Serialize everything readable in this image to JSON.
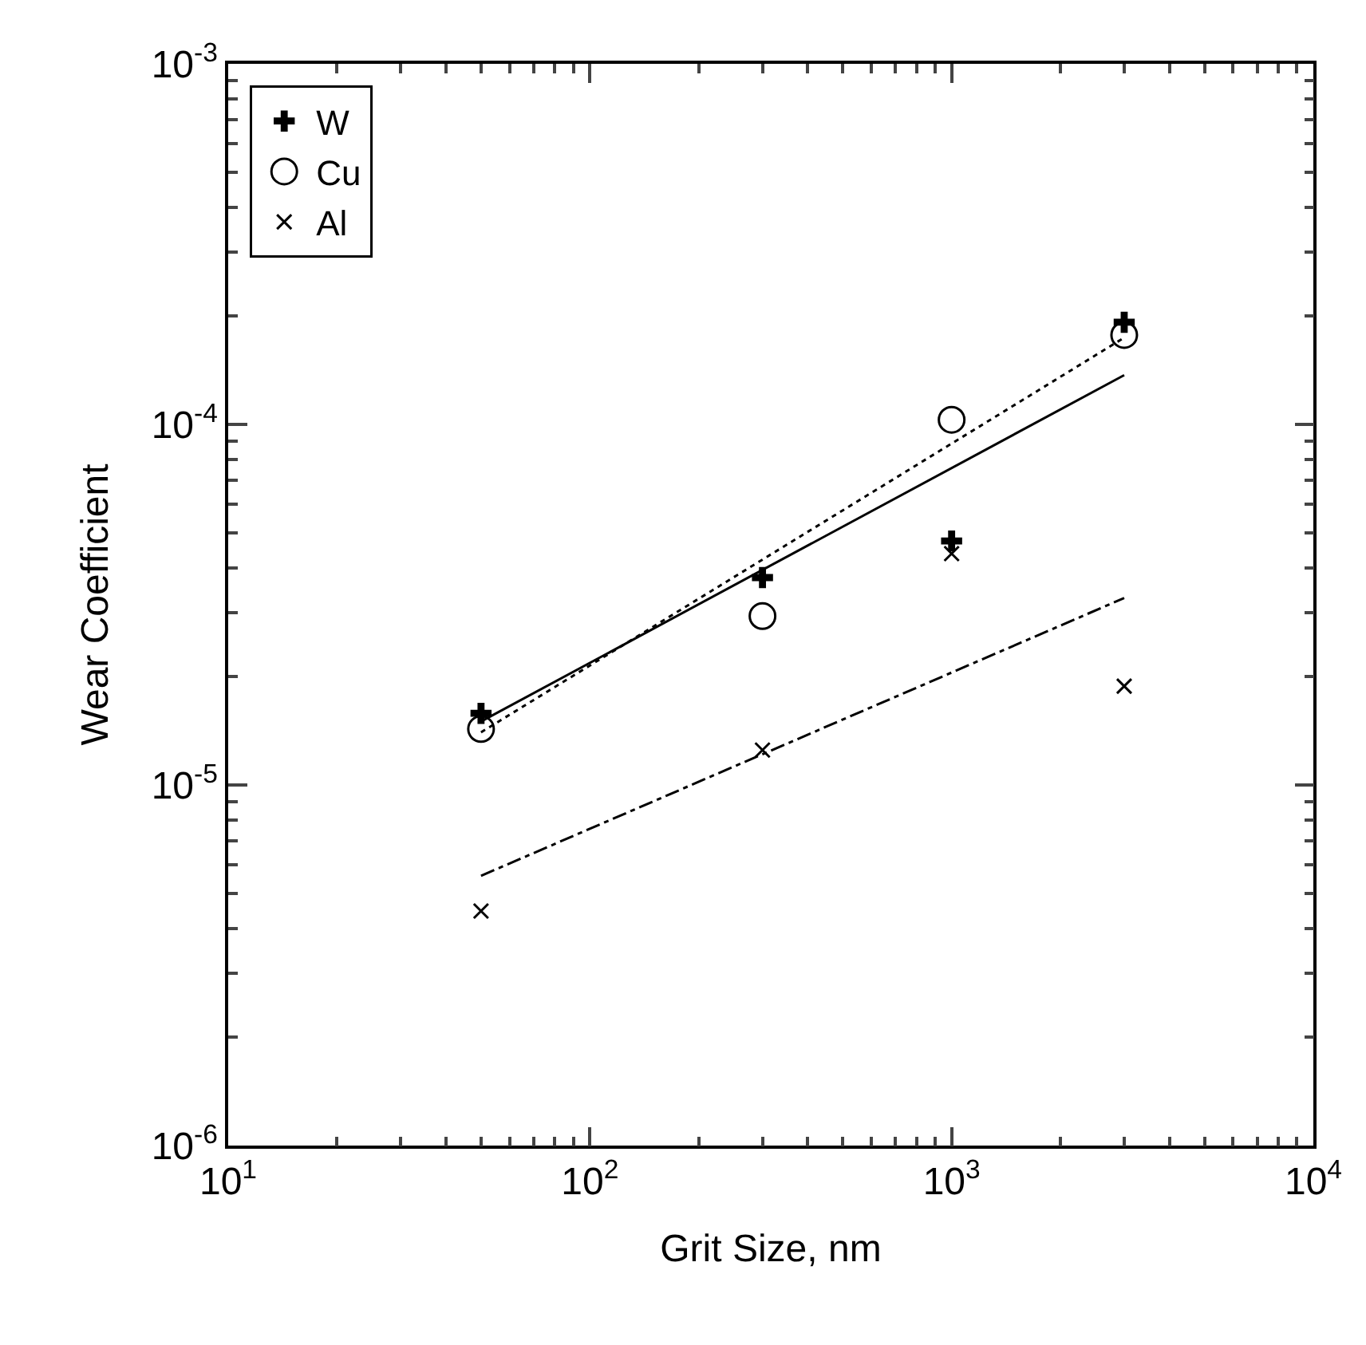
{
  "chart_data": {
    "type": "scatter",
    "xlabel": "Grit Size, nm",
    "ylabel": "Wear Coefficient",
    "log": "xy",
    "grid": false,
    "legend": "top left",
    "xlim": [
      10,
      10000
    ],
    "xticks": [
      {
        "value": 10,
        "label": "10$^{1}$"
      },
      {
        "value": 100,
        "label": "10$^{2}$"
      },
      {
        "value": 1000,
        "label": "10$^{3}$"
      },
      {
        "value": 10000,
        "label": "10$^{4}$"
      }
    ],
    "ylim": [
      1e-06,
      0.001
    ],
    "yticks": [
      {
        "value": 1e-06,
        "label": "10$^{-6}$"
      },
      {
        "value": 1e-05,
        "label": "10$^{-5}$"
      },
      {
        "value": 0.0001,
        "label": "10$^{-4}$"
      },
      {
        "value": 0.001,
        "label": "10$^{-3}$"
      }
    ],
    "series": [
      {
        "name": "W",
        "marker": "cross",
        "color": "#000000",
        "x": [
          50,
          300,
          1000,
          3000
        ],
        "values": [
          1.58e-05,
          3.76e-05,
          4.75e-05,
          0.000192
        ]
      },
      {
        "name": "Cu",
        "marker": "circle",
        "color": "#000000",
        "x": [
          50,
          300,
          1000,
          3000
        ],
        "values": [
          1.43e-05,
          2.94e-05,
          0.000103,
          0.000177
        ]
      },
      {
        "name": "Al",
        "marker": "x",
        "color": "#000000",
        "x": [
          50,
          300,
          1000,
          3000
        ],
        "values": [
          4.47e-06,
          1.25e-05,
          4.38e-05,
          1.88e-05
        ]
      },
      {
        "type": "line",
        "line_style": "solid",
        "color": "#000000",
        "x": [
          50,
          3000
        ],
        "values": [
          1.5e-05,
          0.000137
        ]
      },
      {
        "type": "line",
        "line_style": "dashdot",
        "color": "#000000",
        "x": [
          50,
          3000
        ],
        "values": [
          5.6e-06,
          3.3e-05
        ]
      },
      {
        "type": "line",
        "line_style": "dotted",
        "color": "#000000",
        "x": [
          50,
          3000
        ],
        "values": [
          1.4e-05,
          0.000174
        ]
      }
    ]
  }
}
